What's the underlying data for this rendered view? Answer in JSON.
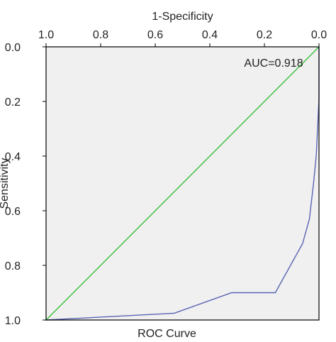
{
  "chart_data": {
    "type": "line",
    "title": "ROC Curve",
    "xlabel": "1-Specificity",
    "ylabel": "Sensitivity",
    "xlim": [
      0,
      1
    ],
    "ylim": [
      0,
      1
    ],
    "x_ticks": [
      "0.0",
      "0.2",
      "0.4",
      "0.6",
      "0.8",
      "1.0"
    ],
    "y_ticks": [
      "0.0",
      "0.2",
      "0.4",
      "0.6",
      "0.8",
      "1.0"
    ],
    "orientation": "rendered mirrored horizontally (image flipped left-right)",
    "annotation": "AUC=0.918",
    "grid": false,
    "legend": "none",
    "series": [
      {
        "x": [
          0.0,
          0.0,
          0.01,
          0.02,
          0.035,
          0.06,
          0.16,
          0.32,
          0.53,
          1.0
        ],
        "y": [
          0.0,
          0.19,
          0.4,
          0.5,
          0.63,
          0.72,
          0.9,
          0.9,
          0.975,
          1.0
        ],
        "color": "#5a64b4"
      },
      {
        "x": [
          0,
          1
        ],
        "y": [
          0,
          1
        ],
        "color": "#3cbe3c"
      }
    ],
    "plot_background": "#f0f0f0"
  }
}
